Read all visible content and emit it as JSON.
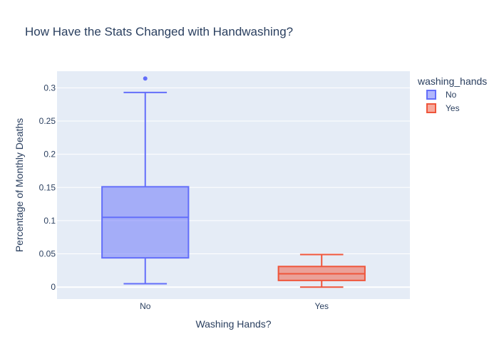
{
  "chart_data": {
    "type": "box",
    "title": "How Have the Stats Changed with Handwashing?",
    "xlabel": "Washing Hands?",
    "ylabel": "Percentage of Monthly Deaths",
    "ylim": [
      -0.018,
      0.325
    ],
    "yticks": [
      0,
      0.05,
      0.1,
      0.15,
      0.2,
      0.25,
      0.3
    ],
    "ytick_labels": [
      "0",
      "0.05",
      "0.1",
      "0.15",
      "0.2",
      "0.25",
      "0.3"
    ],
    "categories": [
      "No",
      "Yes"
    ],
    "legend": {
      "title": "washing_hands",
      "position": "top-right"
    },
    "grid": true,
    "series": [
      {
        "name": "No",
        "category": "No",
        "color": "#636efa",
        "fill": "rgba(99,110,250,0.5)",
        "min": 0.005,
        "q1": 0.044,
        "median": 0.105,
        "q3": 0.151,
        "max": 0.293,
        "outliers": [
          0.314
        ]
      },
      {
        "name": "Yes",
        "category": "Yes",
        "color": "#ef553b",
        "fill": "rgba(239,85,59,0.5)",
        "min": 0,
        "q1": 0.01,
        "median": 0.02,
        "q3": 0.031,
        "max": 0.049,
        "outliers": []
      }
    ]
  }
}
